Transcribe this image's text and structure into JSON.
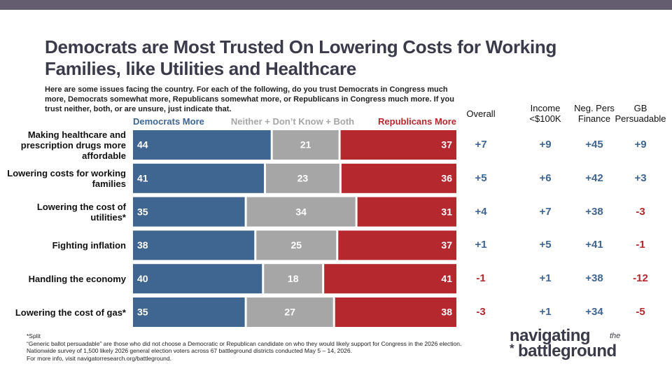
{
  "chart_data": {
    "type": "stacked_bar_h",
    "title": "Democrats are Most Trusted On Lowering Costs for Working Families, like Utilities and Healthcare",
    "subtitle": "Here are some issues facing the country. For each of the following, do you trust Democrats in Congress much more, Democrats somewhat more, Republicans somewhat more, or Republicans in Congress much more. If you trust neither, both, or are unsure, just indicate that.",
    "categories": [
      "Making healthcare and prescription drugs more affordable",
      "Lowering costs for working families",
      "Lowering the cost of utilities*",
      "Fighting inflation",
      "Handling the economy",
      "Lowering the cost of gas*"
    ],
    "series": [
      {
        "name": "Democrats More",
        "color": "#3f6591",
        "values": [
          44,
          41,
          35,
          38,
          40,
          35
        ]
      },
      {
        "name": "Neither + Don’t Know + Both",
        "color": "#a6a6a6",
        "values": [
          21,
          23,
          34,
          25,
          18,
          27
        ]
      },
      {
        "name": "Republicans More",
        "color": "#b5282e",
        "values": [
          37,
          36,
          31,
          37,
          41,
          38
        ]
      }
    ],
    "columns": [
      {
        "header": [
          "Overall"
        ],
        "values": [
          7,
          5,
          4,
          1,
          -1,
          -3
        ],
        "value_labels": [
          "+7",
          "+5",
          "+4",
          "+1",
          "-1",
          "-3"
        ]
      },
      {
        "header": [
          "Income",
          "<$100K"
        ],
        "values": [
          9,
          6,
          7,
          5,
          1,
          1
        ],
        "value_labels": [
          "+9",
          "+6",
          "+7",
          "+5",
          "+1",
          "+1"
        ]
      },
      {
        "header": [
          "Neg. Pers",
          "Finance"
        ],
        "values": [
          45,
          42,
          38,
          41,
          38,
          34
        ],
        "value_labels": [
          "+45",
          "+42",
          "+38",
          "+41",
          "+38",
          "+34"
        ]
      },
      {
        "header": [
          "GB",
          "Persuadable"
        ],
        "values": [
          9,
          3,
          -3,
          -1,
          -12,
          -5
        ],
        "value_labels": [
          "+9",
          "+3",
          "-3",
          "-1",
          "-12",
          "-5"
        ]
      }
    ],
    "positive_color": "#3f6591",
    "negative_color": "#b5282e",
    "notes": [
      "*Split",
      "“Generic ballot persuadable” are those who did not choose a Democratic or Republican candidate on who they would likely support for Congress in the 2026 election.",
      "Nationwide survey of 1,500 likely 2026 general election voters across 67 battleground districts conducted May 5 – 14, 2026.",
      "For more info, visit navigatorresearch.org/battleground."
    ],
    "logo": [
      "navigating",
      "the",
      "battleground"
    ]
  }
}
